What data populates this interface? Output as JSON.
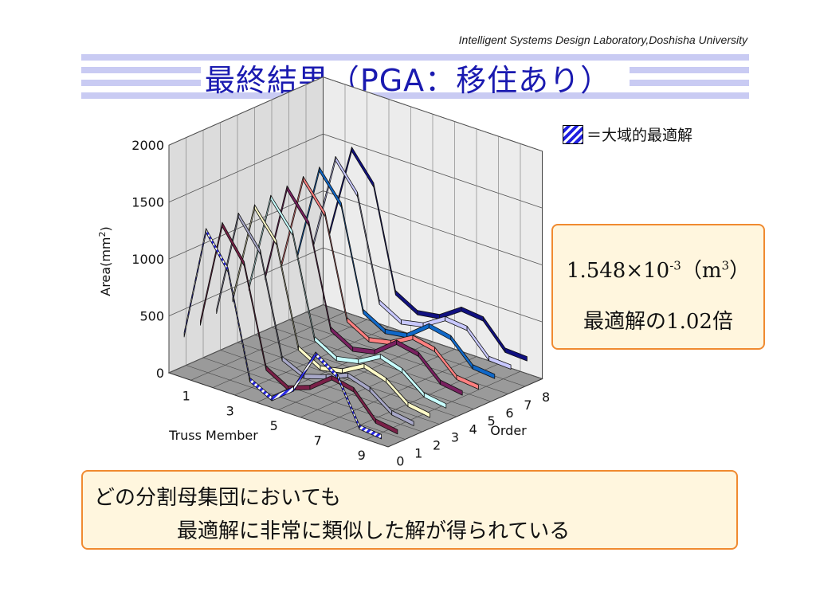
{
  "header": {
    "credit": "Intelligent Systems Design Laboratory,Doshisha University",
    "title": "最終結果（PGA：移住あり）"
  },
  "legend": {
    "label": "＝大域的最適解"
  },
  "result": {
    "mantissa": "1.548",
    "times": "×",
    "base": "10",
    "exponent": "-3",
    "unit_open": "（m",
    "unit_exp": "3",
    "unit_close": "）",
    "ratio": "最適解の1.02倍"
  },
  "bottom": {
    "line1": "どの分割母集団においても",
    "line2": "最適解に非常に類似した解が得られている"
  },
  "colors": {
    "title": "#1a1ab0",
    "box_fill": "#fff6de",
    "box_border": "#f08a30"
  },
  "chart_data": {
    "type": "bar",
    "style": "3d-ribbon",
    "ylabel": "Area(mm2)",
    "ylabel_parts": {
      "base": "Area(mm",
      "sup": "2",
      "close": ")"
    },
    "xlabel": "Truss Member",
    "zlabel": "Order",
    "ylim": [
      0,
      2000
    ],
    "yticks": [
      "0",
      "500",
      "1000",
      "1500",
      "2000"
    ],
    "xticks": [
      "1",
      "3",
      "5",
      "7",
      "9"
    ],
    "zticks": [
      "0",
      "1",
      "2",
      "3",
      "4",
      "5",
      "6",
      "7",
      "8"
    ],
    "grid": true,
    "categories": [
      "1",
      "2",
      "3",
      "4",
      "5",
      "6",
      "7",
      "8",
      "9",
      "10"
    ],
    "series": [
      {
        "name": "0",
        "color": "#2828e8",
        "hatched": true,
        "values": [
          350,
          1330,
          1050,
          150,
          50,
          200,
          570,
          440,
          60,
          40
        ]
      },
      {
        "color": "#7a2048",
        "values": [
          390,
          1320,
          1040,
          190,
          80,
          150,
          300,
          260,
          50,
          20
        ]
      },
      {
        "color": "#a8a8c8",
        "values": [
          430,
          1340,
          1080,
          210,
          120,
          180,
          260,
          200,
          60,
          30
        ]
      },
      {
        "color": "#fffbc8",
        "values": [
          470,
          1350,
          1100,
          240,
          130,
          170,
          280,
          220,
          70,
          40
        ]
      },
      {
        "color": "#c8ffff",
        "values": [
          510,
          1370,
          1120,
          260,
          150,
          190,
          300,
          240,
          90,
          60
        ]
      },
      {
        "color": "#7a2060",
        "values": [
          540,
          1390,
          1140,
          280,
          170,
          210,
          360,
          320,
          140,
          110
        ]
      },
      {
        "color": "#ff8080",
        "values": [
          580,
          1410,
          1160,
          300,
          190,
          230,
          340,
          300,
          120,
          100
        ]
      },
      {
        "color": "#1068c8",
        "values": [
          610,
          1430,
          1180,
          310,
          200,
          230,
          380,
          340,
          150,
          130
        ]
      },
      {
        "color": "#c8c8ff",
        "values": [
          650,
          1460,
          1210,
          330,
          220,
          260,
          380,
          360,
          160,
          150
        ]
      },
      {
        "color": "#101080",
        "values": [
          690,
          1480,
          1230,
          350,
          240,
          270,
          400,
          380,
          170,
          160
        ]
      }
    ]
  }
}
